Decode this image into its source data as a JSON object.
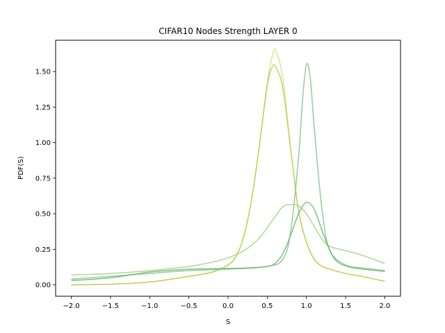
{
  "chart_data": {
    "type": "line",
    "title": "CIFAR10 Nodes Strength LAYER 0",
    "xlabel": "S",
    "ylabel": "PDF(S)",
    "xlim": [
      -2.2,
      2.2
    ],
    "ylim": [
      -0.08,
      1.72
    ],
    "x_ticks": [
      -2.0,
      -1.5,
      -1.0,
      -0.5,
      0.0,
      0.5,
      1.0,
      1.5,
      2.0
    ],
    "x_tick_labels": [
      "−2.0",
      "−1.5",
      "−1.0",
      "−0.5",
      "0.0",
      "0.5",
      "1.0",
      "1.5",
      "2.0"
    ],
    "y_ticks": [
      0.0,
      0.25,
      0.5,
      0.75,
      1.0,
      1.25,
      1.5
    ],
    "y_tick_labels": [
      "0.00",
      "0.25",
      "0.50",
      "0.75",
      "1.00",
      "1.25",
      "1.50"
    ],
    "grid": false,
    "legend": "none",
    "series": [
      {
        "color": "#d2e07a",
        "points": [
          [
            -2.0,
            0.0
          ],
          [
            -1.5,
            0.005
          ],
          [
            -1.0,
            0.02
          ],
          [
            -0.5,
            0.06
          ],
          [
            -0.2,
            0.09
          ],
          [
            0.0,
            0.14
          ],
          [
            0.1,
            0.2
          ],
          [
            0.2,
            0.34
          ],
          [
            0.3,
            0.6
          ],
          [
            0.4,
            0.98
          ],
          [
            0.5,
            1.42
          ],
          [
            0.58,
            1.64
          ],
          [
            0.62,
            1.63
          ],
          [
            0.7,
            1.45
          ],
          [
            0.8,
            0.95
          ],
          [
            0.9,
            0.52
          ],
          [
            1.0,
            0.3
          ],
          [
            1.1,
            0.18
          ],
          [
            1.2,
            0.13
          ],
          [
            1.3,
            0.11
          ],
          [
            1.5,
            0.08
          ],
          [
            1.7,
            0.06
          ],
          [
            2.0,
            0.025
          ]
        ]
      },
      {
        "color": "#b6cf4c",
        "points": [
          [
            -2.0,
            0.0
          ],
          [
            -1.5,
            0.005
          ],
          [
            -1.0,
            0.02
          ],
          [
            -0.5,
            0.06
          ],
          [
            -0.2,
            0.09
          ],
          [
            0.0,
            0.14
          ],
          [
            0.1,
            0.2
          ],
          [
            0.2,
            0.34
          ],
          [
            0.3,
            0.6
          ],
          [
            0.4,
            0.98
          ],
          [
            0.5,
            1.4
          ],
          [
            0.57,
            1.54
          ],
          [
            0.62,
            1.52
          ],
          [
            0.7,
            1.38
          ],
          [
            0.8,
            0.95
          ],
          [
            0.9,
            0.52
          ],
          [
            1.0,
            0.3
          ],
          [
            1.1,
            0.18
          ],
          [
            1.2,
            0.13
          ],
          [
            1.3,
            0.11
          ],
          [
            1.5,
            0.08
          ],
          [
            1.7,
            0.06
          ],
          [
            2.0,
            0.025
          ]
        ]
      },
      {
        "color": "#80c48a",
        "points": [
          [
            -2.0,
            0.04
          ],
          [
            -1.5,
            0.06
          ],
          [
            -1.0,
            0.08
          ],
          [
            -0.5,
            0.1
          ],
          [
            0.0,
            0.11
          ],
          [
            0.5,
            0.13
          ],
          [
            0.7,
            0.18
          ],
          [
            0.8,
            0.38
          ],
          [
            0.9,
            0.9
          ],
          [
            0.95,
            1.3
          ],
          [
            1.0,
            1.55
          ],
          [
            1.05,
            1.45
          ],
          [
            1.1,
            1.1
          ],
          [
            1.2,
            0.52
          ],
          [
            1.3,
            0.24
          ],
          [
            1.5,
            0.14
          ],
          [
            1.7,
            0.12
          ],
          [
            2.0,
            0.1
          ]
        ]
      },
      {
        "color": "#9ed27c",
        "points": [
          [
            -2.0,
            0.07
          ],
          [
            -1.5,
            0.08
          ],
          [
            -1.0,
            0.1
          ],
          [
            -0.5,
            0.13
          ],
          [
            -0.2,
            0.16
          ],
          [
            0.0,
            0.19
          ],
          [
            0.2,
            0.24
          ],
          [
            0.4,
            0.33
          ],
          [
            0.6,
            0.48
          ],
          [
            0.7,
            0.55
          ],
          [
            0.8,
            0.565
          ],
          [
            0.9,
            0.555
          ],
          [
            1.0,
            0.5
          ],
          [
            1.1,
            0.41
          ],
          [
            1.2,
            0.32
          ],
          [
            1.3,
            0.27
          ],
          [
            1.5,
            0.24
          ],
          [
            1.7,
            0.21
          ],
          [
            2.0,
            0.15
          ]
        ]
      },
      {
        "color": "#66b56b",
        "points": [
          [
            -2.0,
            0.03
          ],
          [
            -1.5,
            0.05
          ],
          [
            -1.0,
            0.09
          ],
          [
            -0.5,
            0.11
          ],
          [
            0.0,
            0.115
          ],
          [
            0.3,
            0.12
          ],
          [
            0.5,
            0.13
          ],
          [
            0.6,
            0.15
          ],
          [
            0.7,
            0.22
          ],
          [
            0.8,
            0.35
          ],
          [
            0.9,
            0.5
          ],
          [
            1.0,
            0.58
          ],
          [
            1.1,
            0.53
          ],
          [
            1.2,
            0.38
          ],
          [
            1.3,
            0.24
          ],
          [
            1.4,
            0.16
          ],
          [
            1.6,
            0.12
          ],
          [
            2.0,
            0.095
          ]
        ]
      }
    ]
  }
}
